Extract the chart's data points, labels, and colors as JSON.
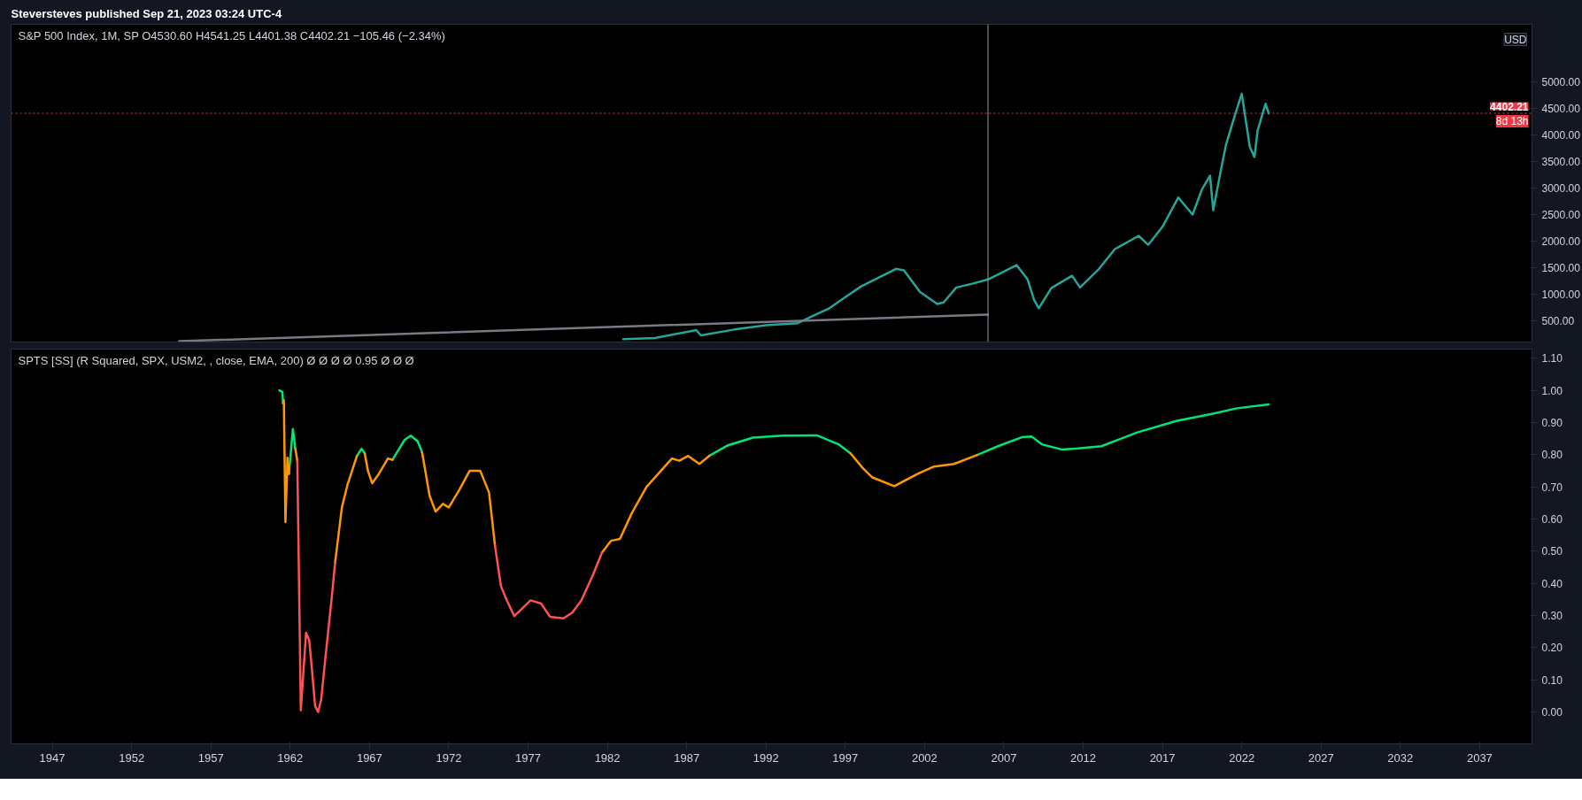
{
  "chart_data": [
    {
      "type": "line",
      "title": "S&P 500 Index, 1M, SP  O4530.60  H4541.25  L4401.38  C4402.21  −105.46 (−2.34%)",
      "annotations": [
        "Steversteves published Sep 21, 2023 03:24 UTC-4",
        "USD",
        {
          "text": "8d 13h",
          "x": 2040.3,
          "y": 4402.21
        }
      ],
      "series": [
        {
          "color": "#26a69a",
          "x": [
            1983,
            1985,
            1987.6,
            1987.9,
            1990,
            1992,
            1994,
            1995,
            1996,
            1997,
            1998,
            1999,
            2000.2,
            2000.7,
            2001.7,
            2002.8,
            2003.2,
            2004,
            2005,
            2006,
            2007.8,
            2008.5,
            2008.9,
            2009.2,
            2010,
            2011.3,
            2011.8,
            2013,
            2014,
            2015.5,
            2016.1,
            2017,
            2018,
            2018.9,
            2019.5,
            2020.0,
            2020.2,
            2020.7,
            2021,
            2021.5,
            2022.0,
            2022.5,
            2022.8,
            2023.0,
            2023.5,
            2023.7
          ],
          "values": [
            160,
            180,
            330,
            230,
            340,
            420,
            460,
            600,
            740,
            950,
            1150,
            1300,
            1480,
            1450,
            1050,
            820,
            850,
            1130,
            1200,
            1280,
            1550,
            1280,
            900,
            740,
            1120,
            1350,
            1130,
            1480,
            1850,
            2100,
            1930,
            2270,
            2820,
            2500,
            2980,
            3230,
            2580,
            3360,
            3800,
            4300,
            4770,
            3780,
            3580,
            4080,
            4580,
            4400
          ]
        },
        {
          "color": "#787b86",
          "x": [
            1955.0,
            2006.0
          ],
          "values": [
            120,
            620
          ]
        }
      ],
      "xlim": [
        1944.4,
        2040.3
      ],
      "ylim": [
        105,
        6073
      ],
      "yticks": [
        {
          "value": 500,
          "label": "500.00"
        },
        {
          "value": 1000,
          "label": "1000.00"
        },
        {
          "value": 1500,
          "label": "1500.00"
        },
        {
          "value": 2000,
          "label": "2000.00"
        },
        {
          "value": 2500,
          "label": "2500.00"
        },
        {
          "value": 3000,
          "label": "3000.00"
        },
        {
          "value": 3500,
          "label": "3500.00"
        },
        {
          "value": 4000,
          "label": "4000.00"
        },
        {
          "value": 4500,
          "label": "4500.00"
        },
        {
          "value": 5000,
          "label": "5000.00"
        }
      ],
      "ref_lines": [
        {
          "axis": "y",
          "value": 4402.21,
          "label": "4402.21",
          "color": "#f23645",
          "line_style": "dotted"
        },
        {
          "axis": "x",
          "value": 2006.0,
          "color": "#9598a1",
          "line_style": "solid"
        }
      ],
      "tick_labels": "y",
      "grid": false
    },
    {
      "type": "line",
      "title": "SPTS [SS] (R Squared, SPX, USM2, , close, EMA, 200)  Ø  Ø  Ø  Ø  0.95  Ø  Ø  Ø",
      "series": [
        {
          "color": "#00e676",
          "x": [
            1961.32,
            1961.51,
            1961.55,
            1961.7,
            1961.92,
            1962.17,
            1962.32,
            1964,
            1966.2,
            1966.5,
            1966.7,
            1967.5,
            1968.45,
            1969.2,
            1969.6,
            1970.04,
            1970.32,
            1980,
            1988.42,
            1989.55,
            1991.18,
            1993.06,
            1995.2,
            1996.58,
            1997.33,
            2001,
            2005.32,
            2006.62,
            2008.13,
            2008.76,
            2009.39,
            2010.64,
            2011.65,
            2013.15,
            2015.41,
            2017.92,
            2020.18,
            2021.69,
            2023.7
          ],
          "values": [
            1.0,
            0.995,
            0.96,
            null,
            0.74,
            0.88,
            0.82,
            null,
            0.795,
            0.818,
            0.804,
            null,
            0.784,
            0.845,
            0.859,
            0.841,
            0.807,
            null,
            0.796,
            0.828,
            0.853,
            0.859,
            0.86,
            0.832,
            0.804,
            null,
            0.799,
            0.826,
            0.854,
            0.856,
            0.832,
            0.816,
            0.819,
            0.826,
            0.869,
            0.905,
            0.927,
            0.944,
            0.956
          ]
        },
        {
          "color": "#ff9800",
          "x": [
            1961.55,
            1961.6,
            1961.7,
            1961.83,
            1961.92,
            1962.1,
            1962.32,
            1962.45,
            1963.5,
            1964.83,
            1965.26,
            1965.63,
            1966.2,
            1966.5,
            1966.7,
            1966.9,
            1967.17,
            1967.6,
            1968.16,
            1968.45,
            1969.5,
            1970.32,
            1970.79,
            1971.17,
            1971.63,
            1972.0,
            1972.67,
            1973.32,
            1973.98,
            1974.54,
            1974.91,
            1978,
            1981.66,
            1982.22,
            1982.79,
            1983.54,
            1984.47,
            1986.07,
            1986.54,
            1987.09,
            1987.8,
            1988.42,
            1993,
            1997.33,
            1998.09,
            1998.71,
            2000.09,
            2001.6,
            2002.6,
            2003.86,
            2005.32
          ],
          "values": [
            0.96,
            0.97,
            0.59,
            0.79,
            0.74,
            null,
            0.82,
            0.78,
            null,
            0.464,
            0.636,
            0.709,
            0.795,
            null,
            0.804,
            0.75,
            0.711,
            0.741,
            0.788,
            0.784,
            null,
            0.807,
            0.672,
            0.623,
            0.647,
            0.636,
            0.691,
            0.75,
            0.75,
            0.682,
            0.518,
            null,
            0.495,
            0.532,
            0.538,
            0.618,
            0.7,
            0.788,
            0.781,
            0.796,
            0.771,
            0.796,
            null,
            0.804,
            0.759,
            0.729,
            0.702,
            0.741,
            0.763,
            0.771,
            0.799
          ]
        },
        {
          "color": "#ff5252",
          "x": [
            1962.45,
            1962.67,
            1963.0,
            1963.2,
            1963.33,
            1963.57,
            1963.76,
            1963.95,
            1964.23,
            1964.6,
            1964.83,
            1970,
            1974.91,
            1975.29,
            1975.67,
            1976.13,
            1977.16,
            1977.82,
            1978.38,
            1979.23,
            1979.79,
            1980.35,
            1981.1,
            1981.66
          ],
          "values": [
            0.78,
            0.005,
            0.246,
            0.223,
            0.155,
            0.019,
            0.0,
            0.037,
            0.173,
            0.346,
            0.464,
            null,
            0.518,
            0.391,
            0.346,
            0.298,
            0.347,
            0.337,
            0.296,
            0.291,
            0.309,
            0.346,
            0.427,
            0.495
          ]
        }
      ],
      "xlim": [
        1944.4,
        2040.3
      ],
      "ylim": [
        -0.099,
        1.128
      ],
      "xticks": [
        1947,
        1952,
        1957,
        1962,
        1967,
        1972,
        1977,
        1982,
        1987,
        1992,
        1997,
        2002,
        2007,
        2012,
        2017,
        2022,
        2027,
        2032,
        2037
      ],
      "yticks": [
        {
          "value": 0,
          "label": "0.00"
        },
        {
          "value": 0.1,
          "label": "0.10"
        },
        {
          "value": 0.2,
          "label": "0.20"
        },
        {
          "value": 0.3,
          "label": "0.30"
        },
        {
          "value": 0.4,
          "label": "0.40"
        },
        {
          "value": 0.5,
          "label": "0.50"
        },
        {
          "value": 0.6,
          "label": "0.60"
        },
        {
          "value": 0.7,
          "label": "0.70"
        },
        {
          "value": 0.8,
          "label": "0.80"
        },
        {
          "value": 0.9,
          "label": "0.90"
        },
        {
          "value": 1.0,
          "label": "1.00"
        },
        {
          "value": 1.1,
          "label": "1.10"
        }
      ],
      "grid": false
    }
  ]
}
